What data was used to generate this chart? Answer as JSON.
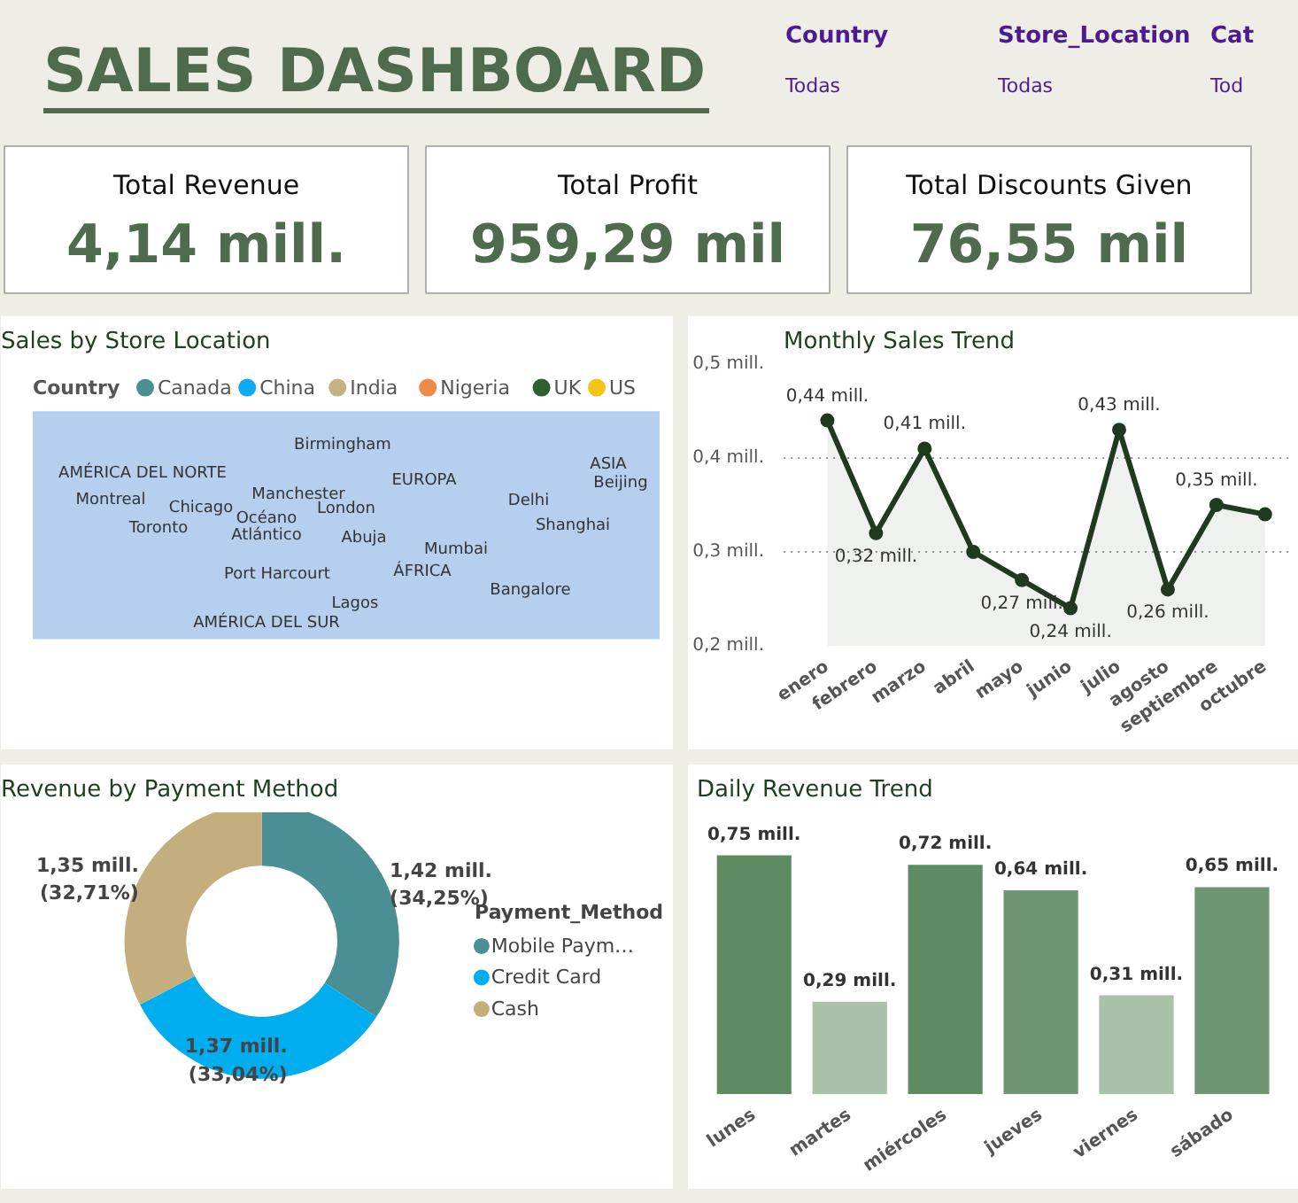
{
  "chart_data": [
    {
      "type": "other",
      "title": "SALES DASHBOARD",
      "annotations": [
        "Total Revenue",
        "4,14 mill.",
        "Total Profit",
        "959,29 mil",
        "Total Discounts Given",
        "76,55 mil",
        "Country",
        "Todas",
        "Store_Location",
        "Todas",
        "Cat",
        "Tod"
      ]
    },
    {
      "type": "other",
      "title": "Sales by Store Location",
      "legend_title": "Country",
      "categories": [
        "Canada",
        "China",
        "India",
        "Nigeria",
        "UK",
        "US"
      ],
      "colors": [
        "#4a8f93",
        "#11a9f0",
        "#c4b185",
        "#f08a4b",
        "#2f5f2f",
        "#f2c318"
      ],
      "annotations": [
        "Birmingham",
        "AMÉRICA DEL NORTE",
        "Manchester",
        "EUROPA",
        "ASIA",
        "Beijing",
        "Montreal",
        "Chicago",
        "London",
        "Delhi",
        "Océano",
        "Atlántico",
        "Toronto",
        "Shanghai",
        "Abuja",
        "Mumbai",
        "Port Harcourt",
        "ÁFRICA",
        "Bangalore",
        "Lagos",
        "AMÉRICA DEL SUR"
      ]
    },
    {
      "type": "area",
      "title": "Monthly Sales Trend",
      "categories": [
        "enero",
        "febrero",
        "marzo",
        "abril",
        "mayo",
        "junio",
        "julio",
        "agosto",
        "septiembre",
        "octubre"
      ],
      "values": [
        0.44,
        0.32,
        0.41,
        0.3,
        0.27,
        0.24,
        0.43,
        0.26,
        0.35,
        0.34
      ],
      "value_labels": [
        "0,44 mill.",
        "0,32 mill.",
        "0,41 mill.",
        null,
        "0,27 mill.",
        "0,24 mill.",
        "0,43 mill.",
        "0,26 mill.",
        "0,35 mill.",
        null
      ],
      "color": "#1f3a1f",
      "ylim": [
        0.2,
        0.5
      ],
      "yticks": [
        {
          "value": 0.2,
          "label": "0,2 mill."
        },
        {
          "value": 0.3,
          "label": "0,3 mill."
        },
        {
          "value": 0.4,
          "label": "0,4 mill."
        },
        {
          "value": 0.5,
          "label": "0,5 mill."
        }
      ],
      "grid": "y",
      "marker": "circle"
    },
    {
      "type": "donut",
      "title": "Revenue by Payment Method",
      "categories": [
        "Mobile Paym…",
        "Credit Card",
        "Cash"
      ],
      "values": [
        1.42,
        1.37,
        1.35
      ],
      "colors": [
        "#4a8f93",
        "#00adef",
        "#c4ae7e"
      ],
      "value_labels": [
        "1,42 mill.\n(34,25%)",
        "1,37 mill.\n(33,04%)",
        "1,35 mill.\n(32,71%)"
      ],
      "legend_title": "Payment_Method",
      "legend": "right"
    },
    {
      "type": "bar",
      "title": "Daily Revenue Trend",
      "categories": [
        "lunes",
        "martes",
        "miércoles",
        "jueves",
        "viernes",
        "sábado"
      ],
      "values": [
        0.75,
        0.29,
        0.72,
        0.64,
        0.31,
        0.65
      ],
      "colors": [
        "#5f8b62",
        "#a9c0a9",
        "#5f8b62",
        "#6f9673",
        "#a9c0a9",
        "#6f9673"
      ],
      "value_labels": [
        "0,75 mill.",
        "0,29 mill.",
        "0,72 mill.",
        "0,64 mill.",
        "0,31 mill.",
        "0,65 mill."
      ]
    }
  ]
}
